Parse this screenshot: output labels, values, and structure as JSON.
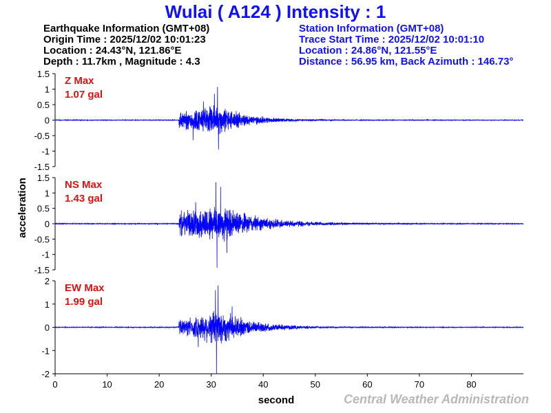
{
  "title": "Wulai ( A124 ) Intensity : 1",
  "earthquake_info": {
    "heading": "Earthquake Information (GMT+08)",
    "origin_time": "Origin Time : 2025/12/02 10:01:23",
    "location": "Location : 24.43°N, 121.86°E",
    "depth_magnitude": "Depth : 11.7km , Magnitude : 4.3"
  },
  "station_info": {
    "heading": "Station Information (GMT+08)",
    "trace_start": "Trace Start Time : 2025/12/02 10:01:10",
    "location": "Location : 24.86°N, 121.55°E",
    "distance": "Distance : 56.95 km, Back Azimuth : 146.73°"
  },
  "ylabel": "acceleration",
  "xlabel": "second",
  "credit": "Central Weather Administration",
  "colors": {
    "title": "#1010ff",
    "trace": "#0000ff",
    "max_label": "#e01010",
    "credit": "#b8b8b8"
  },
  "chart_data": [
    {
      "type": "line",
      "component": "Z",
      "max_label": "Z Max",
      "max_value": "1.07 gal",
      "peak": 1.07,
      "ylim": [
        -1.5,
        1.5
      ],
      "yticks": [
        1.5,
        1,
        0.5,
        0,
        -0.5,
        -1,
        -1.5
      ],
      "ytick_labels": [
        "1.5",
        "1",
        "0.5",
        "0",
        "-0.5",
        "-1",
        "-1.5"
      ],
      "xlim": [
        0,
        90
      ],
      "envelope": {
        "onset": 23.8,
        "pre_amp": 0.35,
        "peak_time": 31,
        "peak_amp": 0.6,
        "coda_end": 48,
        "noise": 0.012
      },
      "spikes": [
        [
          31.2,
          1.07
        ],
        [
          31.4,
          -0.95
        ],
        [
          30.6,
          0.85
        ],
        [
          26.5,
          -0.65
        ],
        [
          28.5,
          0.6
        ]
      ]
    },
    {
      "type": "line",
      "component": "NS",
      "max_label": "NS Max",
      "max_value": "1.43 gal",
      "peak": 1.43,
      "ylim": [
        -1.5,
        1.5
      ],
      "yticks": [
        1.5,
        1,
        0.5,
        0,
        -0.5,
        -1,
        -1.5
      ],
      "ytick_labels": [
        "1.5",
        "1",
        "0.5",
        "0",
        "-0.5",
        "-1",
        "-1.5"
      ],
      "xlim": [
        0,
        90
      ],
      "envelope": {
        "onset": 23.8,
        "pre_amp": 0.45,
        "peak_time": 31,
        "peak_amp": 0.75,
        "coda_end": 55,
        "noise": 0.015
      },
      "spikes": [
        [
          31.1,
          -1.43
        ],
        [
          30.9,
          1.35
        ],
        [
          31.8,
          1.2
        ],
        [
          27.0,
          0.7
        ],
        [
          33.0,
          -0.95
        ]
      ]
    },
    {
      "type": "line",
      "component": "EW",
      "max_label": "EW Max",
      "max_value": "1.99 gal",
      "peak": 1.99,
      "ylim": [
        -2,
        2
      ],
      "yticks": [
        2,
        1,
        0,
        -1,
        -2
      ],
      "ytick_labels": [
        "2",
        "1",
        "0",
        "-1",
        "-2"
      ],
      "xlim": [
        0,
        90
      ],
      "envelope": {
        "onset": 23.8,
        "pre_amp": 0.4,
        "peak_time": 31,
        "peak_amp": 0.95,
        "coda_end": 50,
        "noise": 0.018
      },
      "spikes": [
        [
          31.0,
          -1.99
        ],
        [
          31.3,
          1.8
        ],
        [
          30.8,
          1.6
        ],
        [
          27.5,
          -0.85
        ],
        [
          34.0,
          0.9
        ]
      ]
    }
  ],
  "xticks": [
    0,
    10,
    20,
    30,
    40,
    50,
    60,
    70,
    80
  ],
  "xtick_labels": [
    "0",
    "10",
    "20",
    "30",
    "40",
    "50",
    "60",
    "70",
    "80"
  ]
}
